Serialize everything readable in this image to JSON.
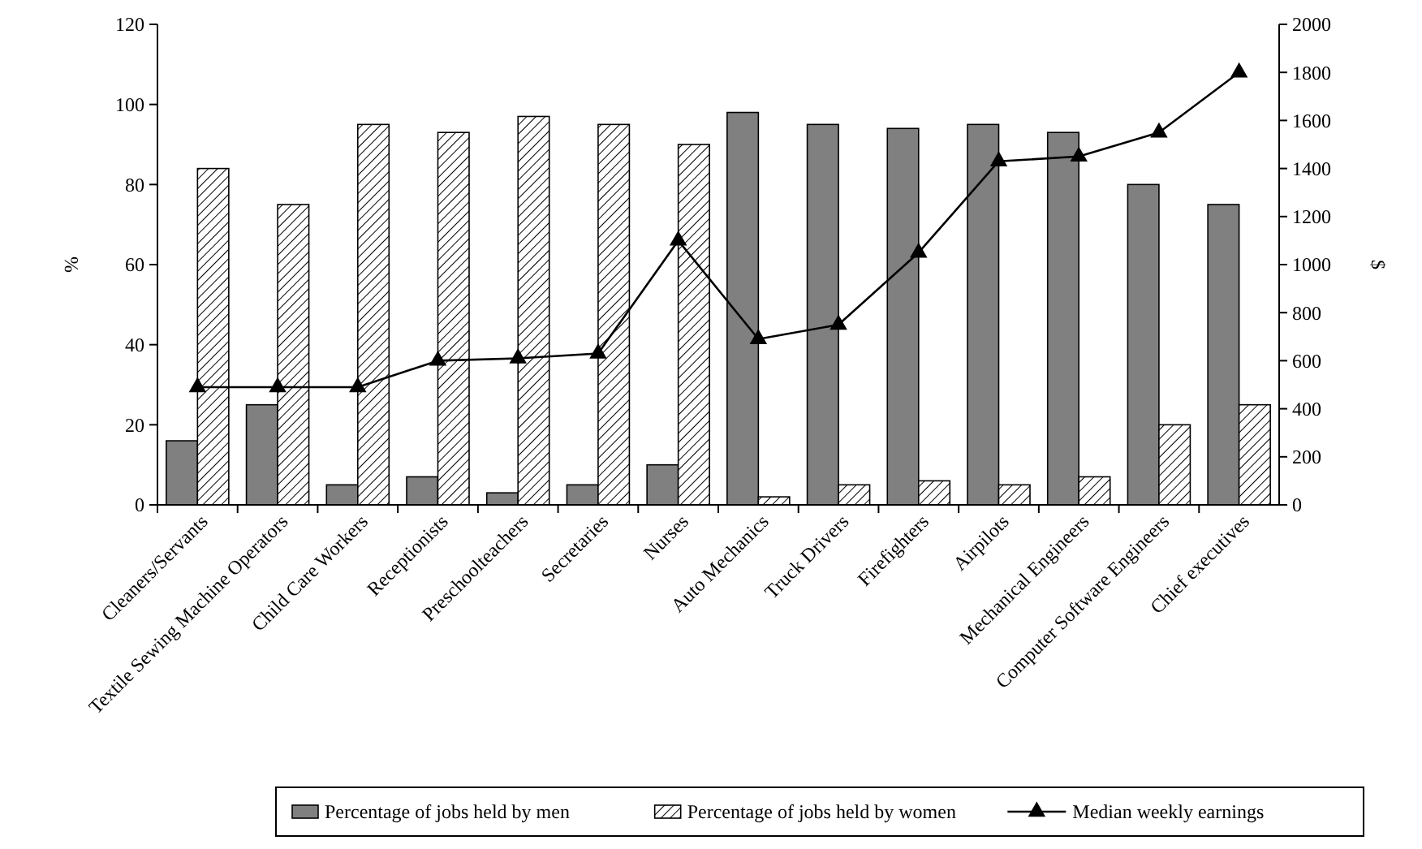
{
  "chart_data": {
    "type": "bar",
    "ylabel": "%",
    "y2label": "$",
    "categories": [
      "Cleaners/Servants",
      "Textile Sewing Machine Operators",
      "Child Care Workers",
      "Receptionists",
      "Preschoolteachers",
      "Secretaries",
      "Nurses",
      "Auto Mechanics",
      "Truck Drivers",
      "Firefighters",
      "Airpilots",
      "Mechanical Engineers",
      "Computer Software Engineers",
      "Chief executives"
    ],
    "series": [
      {
        "name": "Percentage of jobs held by men",
        "color": "#808080",
        "values": [
          16,
          25,
          5,
          7,
          3,
          5,
          10,
          98,
          95,
          94,
          95,
          93,
          80,
          75
        ]
      },
      {
        "name": "Percentage of jobs held by women",
        "color": "#000000",
        "values": [
          84,
          75,
          95,
          93,
          97,
          95,
          90,
          2,
          5,
          6,
          5,
          7,
          20,
          25
        ]
      },
      {
        "name": "Median weekly earnings",
        "type": "line",
        "axis": "y2",
        "color": "#000000",
        "marker": "triangle",
        "values": [
          490,
          490,
          490,
          600,
          610,
          630,
          1100,
          690,
          750,
          1050,
          1430,
          1450,
          1550,
          1800
        ]
      }
    ],
    "ylim": [
      0,
      120
    ],
    "yticks": [
      0,
      20,
      40,
      60,
      80,
      100,
      120
    ],
    "y2lim": [
      0,
      2000
    ],
    "y2ticks": [
      0,
      200,
      400,
      600,
      800,
      1000,
      1200,
      1400,
      1600,
      1800,
      2000
    ],
    "grid": false,
    "legend": "bottom"
  }
}
